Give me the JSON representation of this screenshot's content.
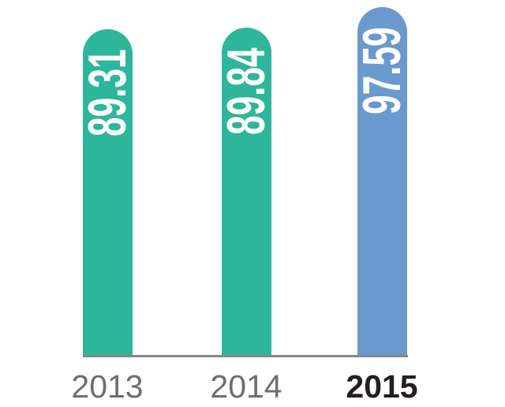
{
  "chart_data": {
    "type": "bar",
    "categories": [
      "2013",
      "2014",
      "2015"
    ],
    "values": [
      89.31,
      89.84,
      97.59
    ],
    "title": "",
    "xlabel": "",
    "ylabel": "",
    "data_labels": [
      "89.31",
      "89.84",
      "97.59"
    ],
    "data_label_style": "rotated 90deg, white, inside top of bar, reading bottom-to-top",
    "bar_colors": [
      "#2db69a",
      "#2db69a",
      "#6999cd"
    ],
    "highlighted_category": "2015",
    "grid": false,
    "legend": false,
    "baseline": true,
    "baseline_color": "#85878a"
  },
  "chart": {
    "bars": [
      {
        "year": "2013",
        "value_label": "89.31"
      },
      {
        "year": "2014",
        "value_label": "89.84"
      },
      {
        "year": "2015",
        "value_label": "97.59"
      }
    ]
  },
  "colors": {
    "teal": "#2db69a",
    "blue": "#6999cd",
    "axis_line": "#85878a",
    "tick_gray": "#6d6e71",
    "tick_black": "#231f20",
    "value_text": "#ffffff"
  }
}
